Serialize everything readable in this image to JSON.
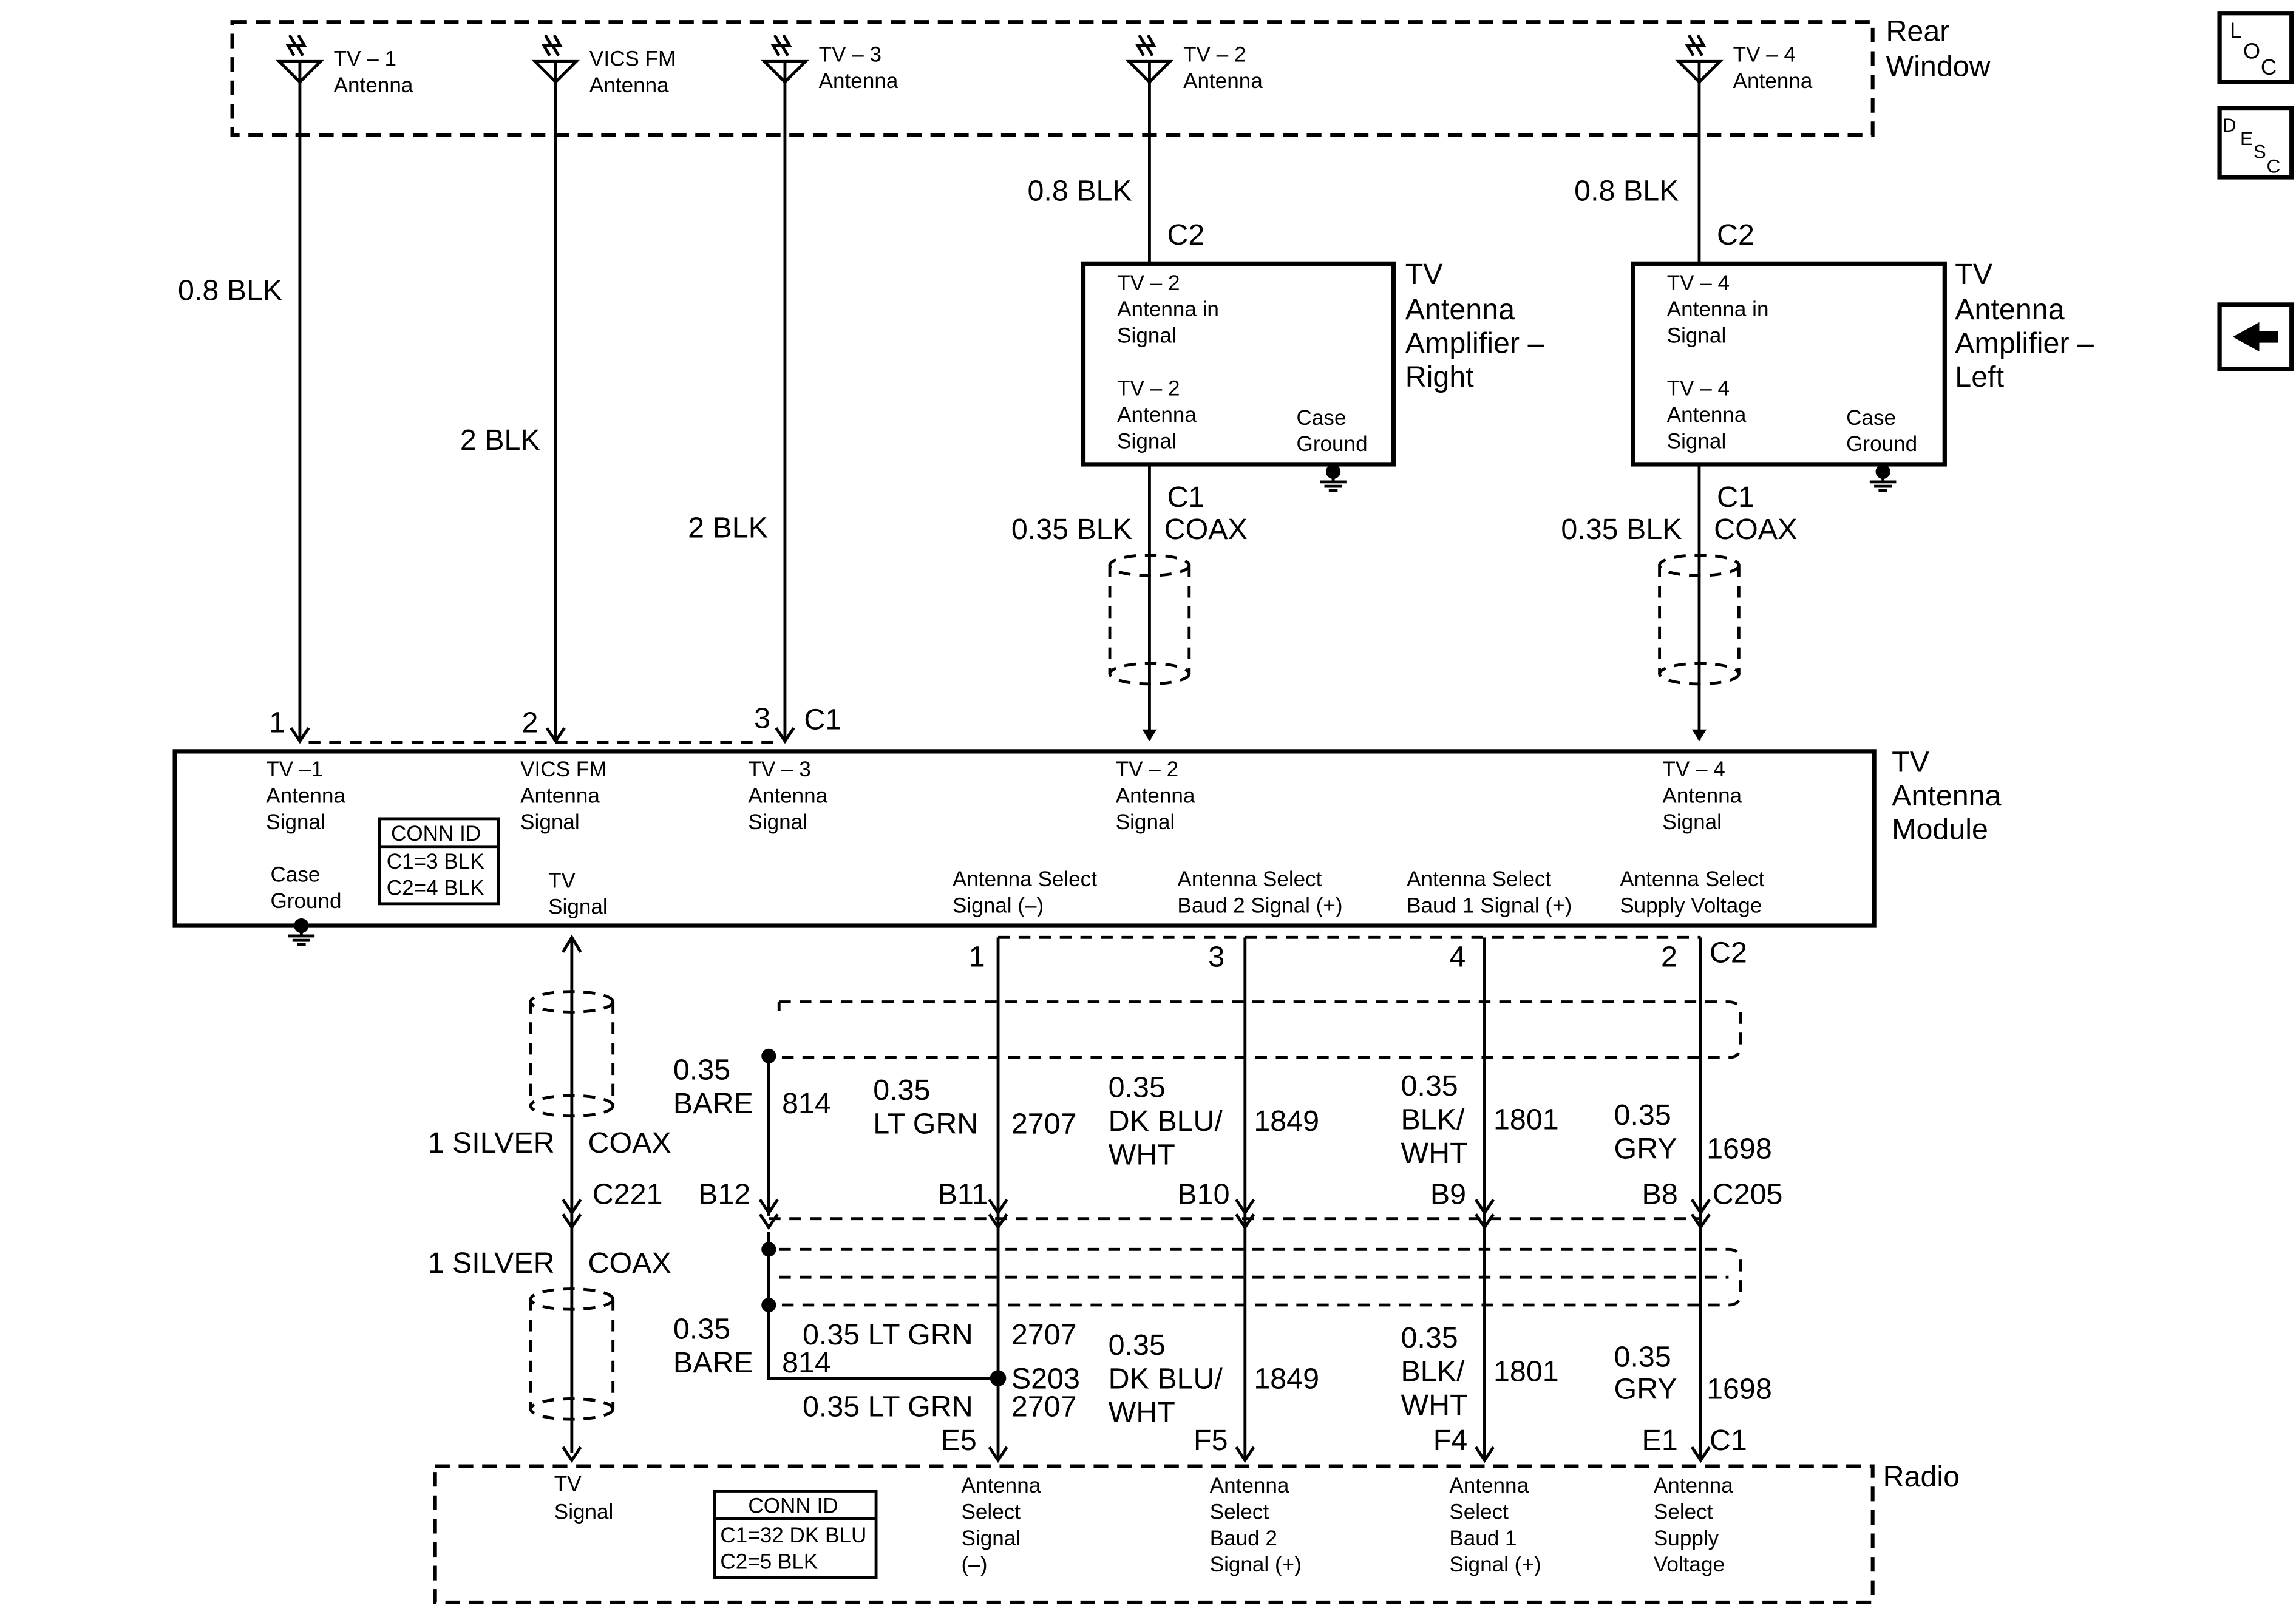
{
  "rear_window": {
    "label": [
      "Rear",
      "Window"
    ]
  },
  "antennas": [
    {
      "label": [
        "TV – 1",
        "Antenna"
      ]
    },
    {
      "label": [
        "VICS FM",
        "Antenna"
      ]
    },
    {
      "label": [
        "TV – 3",
        "Antenna"
      ]
    },
    {
      "label": [
        "TV – 2",
        "Antenna"
      ]
    },
    {
      "label": [
        "TV – 4",
        "Antenna"
      ]
    }
  ],
  "upper_wires": {
    "tv1": "0.8 BLK",
    "vics": "2 BLK",
    "tv3": "2 BLK",
    "tv2": "0.8 BLK",
    "tv4": "0.8 BLK",
    "c2": "C2"
  },
  "amp_right": {
    "title": [
      "TV",
      "Antenna",
      "Amplifier –",
      "Right"
    ],
    "in": [
      "TV – 2",
      "Antenna in",
      "Signal"
    ],
    "out": [
      "TV – 2",
      "Antenna",
      "Signal"
    ],
    "ground": [
      "Case",
      "Ground"
    ],
    "c1": "C1",
    "wire": "0.35 BLK",
    "coax": "COAX"
  },
  "amp_left": {
    "title": [
      "TV",
      "Antenna",
      "Amplifier –",
      "Left"
    ],
    "in": [
      "TV – 4",
      "Antenna in",
      "Signal"
    ],
    "out": [
      "TV – 4",
      "Antenna",
      "Signal"
    ],
    "ground": [
      "Case",
      "Ground"
    ],
    "c1": "C1",
    "wire": "0.35 BLK",
    "coax": "COAX"
  },
  "module_conn": {
    "pins": [
      "1",
      "2",
      "3"
    ],
    "id": "C1"
  },
  "module": {
    "title": [
      "TV",
      "Antenna",
      "Module"
    ],
    "inputs": [
      [
        "TV –1",
        "Antenna",
        "Signal"
      ],
      [
        "VICS FM",
        "Antenna",
        "Signal"
      ],
      [
        "TV – 3",
        "Antenna",
        "Signal"
      ],
      [
        "TV – 2",
        "Antenna",
        "Signal"
      ],
      [
        "TV – 4",
        "Antenna",
        "Signal"
      ]
    ],
    "conn_id": [
      "CONN ID",
      "C1=3 BLK",
      "C2=4 BLK"
    ],
    "case_ground": [
      "Case",
      "Ground"
    ],
    "tv_signal": [
      "TV",
      "Signal"
    ],
    "outputs": [
      [
        "Antenna Select",
        "Signal (–)"
      ],
      [
        "Antenna Select",
        "Baud 2 Signal (+)"
      ],
      [
        "Antenna Select",
        "Baud 1 Signal (+)"
      ],
      [
        "Antenna Select",
        "Supply Voltage"
      ]
    ]
  },
  "c2_conn": {
    "pins": [
      "1",
      "3",
      "4",
      "2"
    ],
    "id": "C2"
  },
  "upper_harness": {
    "bare": [
      "0.35",
      "BARE",
      "814"
    ],
    "ltgrn": [
      "0.35",
      "LT GRN",
      "2707"
    ],
    "dkblu": [
      "0.35",
      "DK BLU/",
      "WHT",
      "1849"
    ],
    "blkwht": [
      "0.35",
      "BLK/",
      "WHT",
      "1801"
    ],
    "gry": [
      "0.35",
      "GRY",
      "1698"
    ]
  },
  "coax": {
    "upper": [
      "1 SILVER",
      "COAX"
    ],
    "lower": [
      "1 SILVER",
      "COAX"
    ],
    "conn": "C221"
  },
  "c205": {
    "pins": [
      "B12",
      "B11",
      "B10",
      "B9",
      "B8"
    ],
    "id": "C205"
  },
  "lower_harness": {
    "bare": [
      "0.35",
      "BARE",
      "814"
    ],
    "ltgrn_top": [
      "0.35 LT GRN",
      "2707"
    ],
    "splice": "S203",
    "ltgrn_bot": [
      "0.35 LT GRN",
      "2707"
    ],
    "dkblu": [
      "0.35",
      "DK BLU/",
      "WHT",
      "1849"
    ],
    "blkwht": [
      "0.35",
      "BLK/",
      "WHT",
      "1801"
    ],
    "gry": [
      "0.35",
      "GRY",
      "1698"
    ]
  },
  "radio_conn": {
    "pins": [
      "E5",
      "F5",
      "F4",
      "E1"
    ],
    "id": "C1"
  },
  "radio": {
    "title": "Radio",
    "tv_signal": [
      "TV",
      "Signal"
    ],
    "conn_id": [
      "CONN ID",
      "C1=32 DK BLU",
      "C2=5 BLK"
    ],
    "inputs": [
      [
        "Antenna",
        "Select",
        "Signal",
        "(–)"
      ],
      [
        "Antenna",
        "Select",
        "Baud 2",
        "Signal (+)"
      ],
      [
        "Antenna",
        "Select",
        "Baud 1",
        "Signal (+)"
      ],
      [
        "Antenna",
        "Select",
        "Supply",
        "Voltage"
      ]
    ]
  },
  "nav": {
    "loc": [
      "L",
      "O",
      "C"
    ],
    "desc": [
      "D",
      "E",
      "S",
      "C"
    ]
  }
}
